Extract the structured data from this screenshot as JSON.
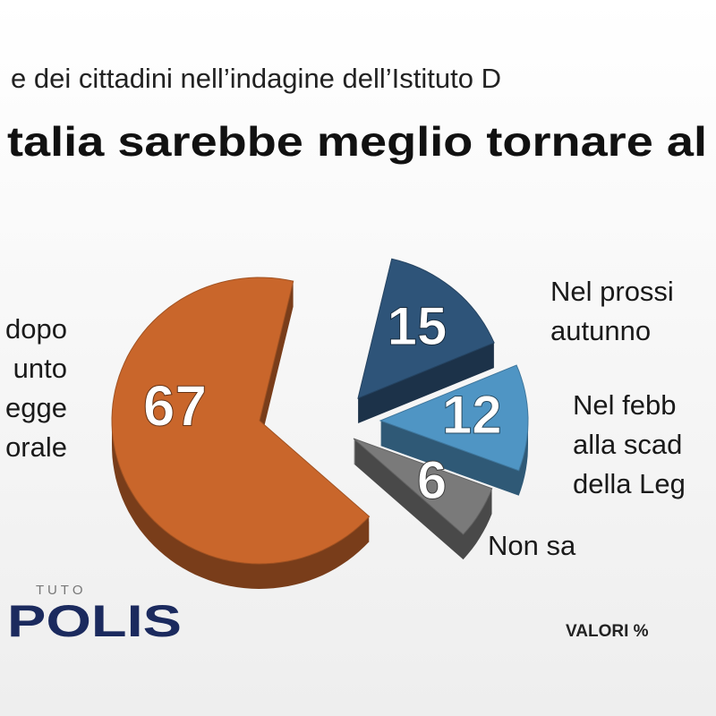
{
  "chart_data": {
    "type": "pie",
    "subtitle": "e dei cittadini nell’indagine dell’Istituto D",
    "title": "talia sarebbe meglio tornare al",
    "categories": [
      "dopo\nunto\negge\norale",
      "Nel prossi\nautunno",
      "Nel febb\nalla scad\ndella Leg",
      "Non sa"
    ],
    "values": [
      67,
      15,
      12,
      6
    ],
    "colors": [
      "#c9662b",
      "#2e5479",
      "#4f95c4",
      "#7a7a7a"
    ],
    "logo_top": "T U T O",
    "logo": "POLIS",
    "note": "VALORI %"
  }
}
